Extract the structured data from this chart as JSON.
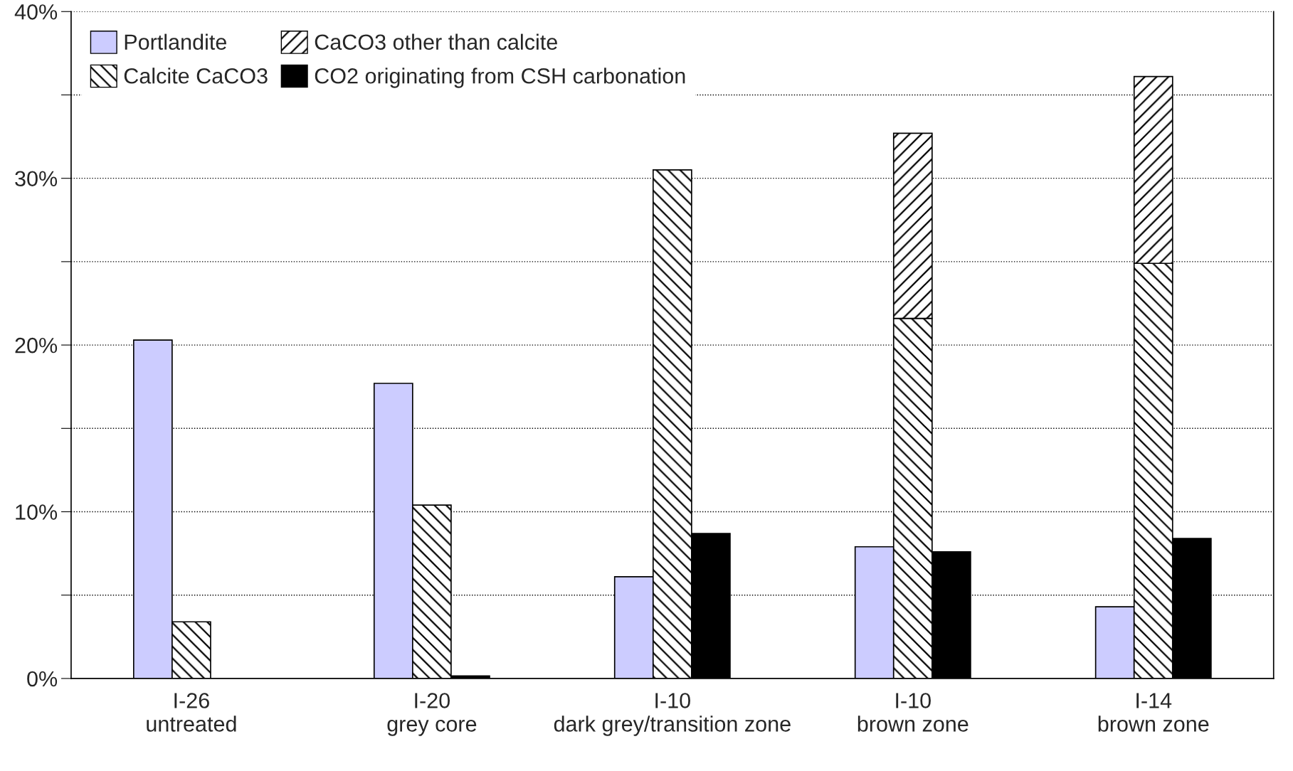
{
  "chart_data": {
    "type": "bar",
    "categories": [
      "I-26\nuntreated",
      "I-20\ngrey core",
      "I-10\ndark grey/transition zone",
      "I-10\nbrown zone",
      "I-14\nbrown zone"
    ],
    "series": [
      {
        "name": "Portlandite",
        "color": "#ccccff",
        "values": [
          20.3,
          17.7,
          6.1,
          7.9,
          4.3
        ]
      },
      {
        "name": "Calcite CaCO3",
        "color": "#000000",
        "values": [
          3.4,
          10.4,
          30.5,
          21.6,
          24.9
        ]
      },
      {
        "name": "CaCO3 other than calcite",
        "color": "#000000",
        "values": [
          null,
          null,
          null,
          11.1,
          11.2
        ],
        "base": [
          null,
          null,
          null,
          21.6,
          24.9
        ]
      },
      {
        "name": "CO2 originating from CSH carbonation",
        "color": "#000000",
        "values": [
          0,
          0.15,
          8.7,
          7.6,
          8.4
        ]
      }
    ],
    "ylim": [
      0,
      40
    ],
    "yticks": [
      {
        "value": 0,
        "label": "0%"
      },
      {
        "value": 5,
        "label": null
      },
      {
        "value": 10,
        "label": "10%"
      },
      {
        "value": 15,
        "label": null
      },
      {
        "value": 20,
        "label": "20%"
      },
      {
        "value": 25,
        "label": null
      },
      {
        "value": 30,
        "label": "30%"
      },
      {
        "value": 35,
        "label": null
      },
      {
        "value": 40,
        "label": "40%"
      }
    ],
    "grid": "y",
    "legend": "top left"
  }
}
